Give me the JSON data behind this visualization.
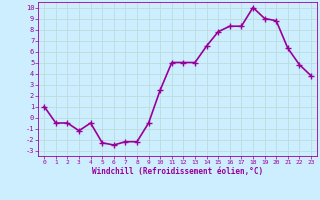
{
  "x": [
    0,
    1,
    2,
    3,
    4,
    5,
    6,
    7,
    8,
    9,
    10,
    11,
    12,
    13,
    14,
    15,
    16,
    17,
    18,
    19,
    20,
    21,
    22,
    23
  ],
  "y": [
    1,
    -0.5,
    -0.5,
    -1.2,
    -0.5,
    -2.3,
    -2.5,
    -2.2,
    -2.2,
    -0.5,
    2.5,
    5.0,
    5.0,
    5.0,
    6.5,
    7.8,
    8.3,
    8.3,
    10.0,
    9.0,
    8.8,
    6.3,
    4.8,
    3.8
  ],
  "xlabel": "Windchill (Refroidissement éolien,°C)",
  "xlim": [
    -0.5,
    23.5
  ],
  "ylim": [
    -3.5,
    10.5
  ],
  "yticks": [
    -3,
    -2,
    -1,
    0,
    1,
    2,
    3,
    4,
    5,
    6,
    7,
    8,
    9,
    10
  ],
  "xticks": [
    0,
    1,
    2,
    3,
    4,
    5,
    6,
    7,
    8,
    9,
    10,
    11,
    12,
    13,
    14,
    15,
    16,
    17,
    18,
    19,
    20,
    21,
    22,
    23
  ],
  "line_color": "#990099",
  "marker": "+",
  "marker_size": 4,
  "bg_color": "#cceeff",
  "grid_color": "#bbdddd",
  "tick_label_color": "#990099",
  "xlabel_color": "#990099",
  "line_width": 1.2
}
